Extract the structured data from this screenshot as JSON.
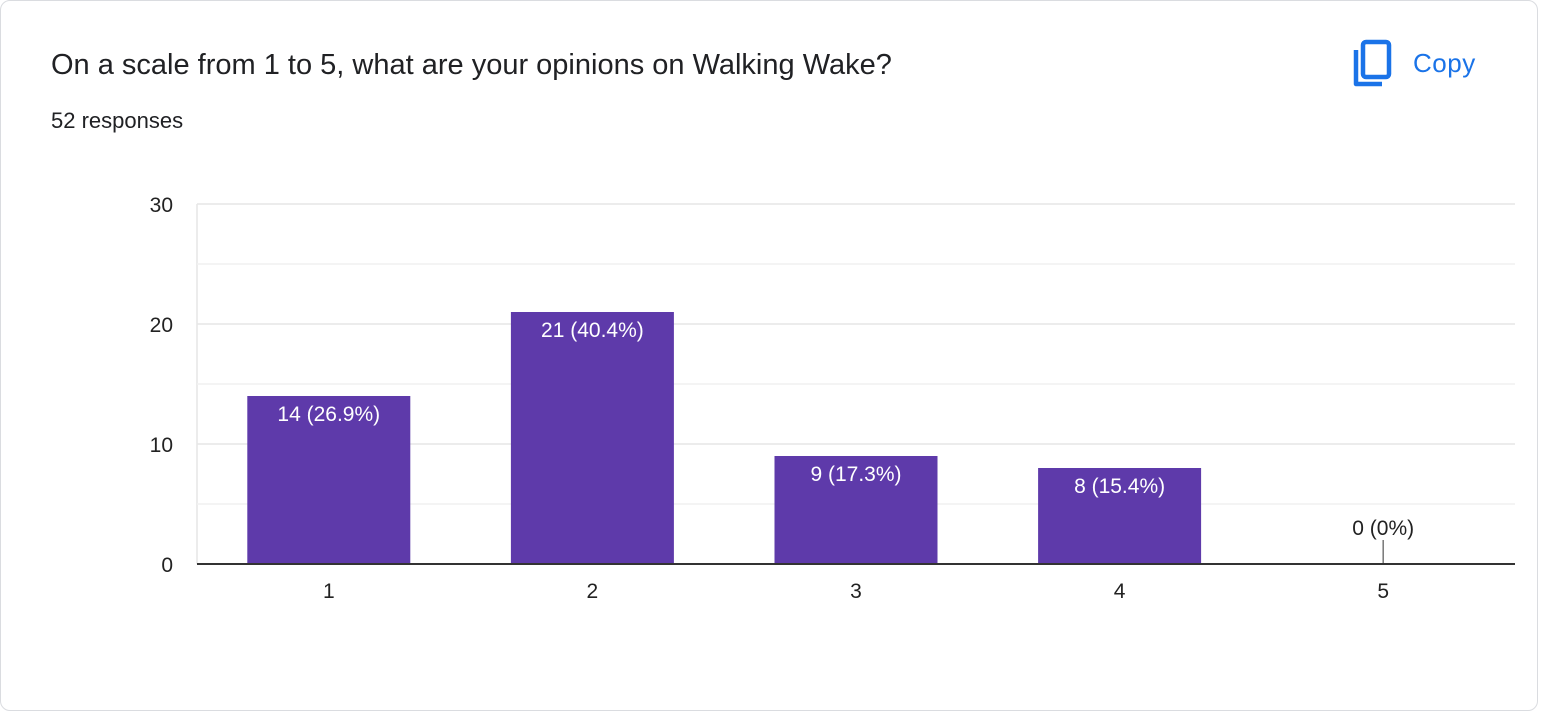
{
  "question": {
    "title": "On a scale from 1 to 5, what are your opinions on Walking Wake?",
    "responses": "52 responses"
  },
  "toolbar": {
    "copy_label": "Copy",
    "copy_icon": "copy-icon"
  },
  "colors": {
    "bar": "#5e3aaa",
    "accent": "#1a73e8",
    "gridline": "#e6e6e6",
    "axis": "#333333"
  },
  "chart_data": {
    "type": "bar",
    "categories": [
      "1",
      "2",
      "3",
      "4",
      "5"
    ],
    "values": [
      14,
      21,
      9,
      8,
      0
    ],
    "data_labels": [
      "14 (26.9%)",
      "21 (40.4%)",
      "9 (17.3%)",
      "8 (15.4%)",
      "0 (0%)"
    ],
    "y_ticks": [
      "0",
      "10",
      "20",
      "30"
    ],
    "ylim": [
      0,
      30
    ],
    "grid": true,
    "legend": "none"
  }
}
